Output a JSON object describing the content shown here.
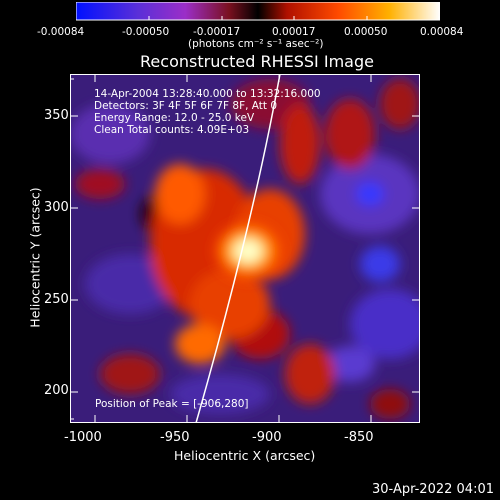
{
  "colorbar": {
    "tick_labels": [
      "-0.00084",
      "-0.00050",
      "-0.00017",
      "0.00017",
      "0.00050",
      "0.00084"
    ],
    "units": "(photons cm⁻² s⁻¹ asec⁻²)"
  },
  "title": "Reconstructed RHESSI Image",
  "info": {
    "line1": "14-Apr-2004 13:28:40.000 to 13:32:16.000",
    "line2": "Detectors: 3F 4F 5F 6F 7F 8F, Att 0",
    "line3": "Energy Range: 12.0 - 25.0 keV",
    "line4": "Clean     Total counts: 4.09E+03"
  },
  "peak_label": "Position of Peak = [-906,280]",
  "axes": {
    "xlabel": "Heliocentric X (arcsec)",
    "ylabel": "Heliocentric Y (arcsec)",
    "x_ticks": [
      "-1000",
      "-950",
      "-900",
      "-850"
    ],
    "y_ticks": [
      "200",
      "250",
      "300",
      "350"
    ]
  },
  "footer_date": "30-Apr-2022 04:01",
  "colors": {
    "background": "#000000",
    "peak": "#ffffc8"
  }
}
